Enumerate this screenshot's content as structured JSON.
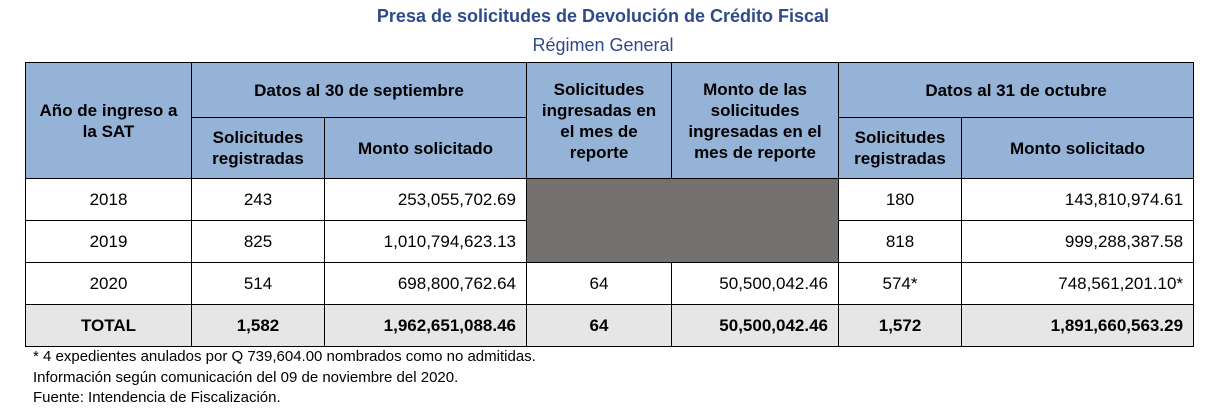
{
  "title": "Presa de solicitudes de Devolución de Crédito Fiscal",
  "subtitle": "Régimen General",
  "headers": {
    "year": "Año de ingreso a la SAT",
    "group_sep": "Datos al 30 de septiembre",
    "month_count": "Solicitudes ingresadas en el mes de reporte",
    "month_amount": "Monto de las solicitudes ingresadas en el mes de reporte",
    "group_oct": "Datos al 31 de octubre",
    "sub_count": "Solicitudes registradas",
    "sub_amount": "Monto solicitado"
  },
  "rows": [
    {
      "year": "2018",
      "sep_count": "243",
      "sep_amount": "253,055,702.69",
      "month_count": "",
      "month_amount": "",
      "oct_count": "180",
      "oct_amount": "143,810,974.61"
    },
    {
      "year": "2019",
      "sep_count": "825",
      "sep_amount": "1,010,794,623.13",
      "month_count": "",
      "month_amount": "",
      "oct_count": "818",
      "oct_amount": "999,288,387.58"
    },
    {
      "year": "2020",
      "sep_count": "514",
      "sep_amount": "698,800,762.64",
      "month_count": "64",
      "month_amount": "50,500,042.46",
      "oct_count": "574*",
      "oct_amount": "748,561,201.10*"
    }
  ],
  "total": {
    "label": "TOTAL",
    "sep_count": "1,582",
    "sep_amount": "1,962,651,088.46",
    "month_count": "64",
    "month_amount": "50,500,042.46",
    "oct_count": "1,572",
    "oct_amount": "1,891,660,563.29"
  },
  "notes": [
    "* 4 expedientes anulados por Q 739,604.00 nombrados como no admitidas.",
    "Información según comunicación del 09 de noviembre del 2020.",
    "Fuente: Intendencia de Fiscalización."
  ],
  "colors": {
    "title": "#2E4A8C",
    "header_bg": "#95B3D7",
    "blank_cell": "#767171",
    "total_bg": "#E7E6E6"
  }
}
